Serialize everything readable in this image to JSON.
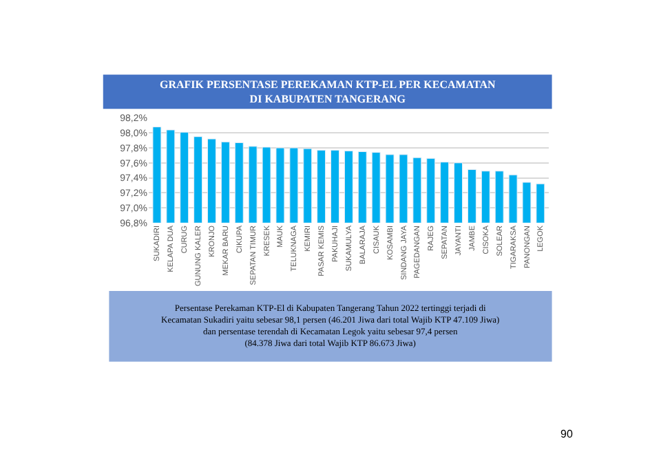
{
  "chart_data": {
    "type": "bar",
    "title": "GRAFIK PERSENTASE PEREKAMAN KTP-EL PER KECAMATAN\nDI KABUPATEN TANGERANG",
    "categories": [
      "SUKADIRI",
      "KELAPA DUA",
      "CURUG",
      "GUNUNG KALER",
      "KRONJO",
      "MEKAR BARU",
      "CIKUPA",
      "SEPATAN TIMUR",
      "KRESEK",
      "MAUK",
      "TELUKNAGA",
      "KEMIRI",
      "PASAR KEMIS",
      "PAKUHAJI",
      "SUKAMULYA",
      "BALARAJA",
      "CISAUK",
      "KOSAMBI",
      "SINDANG JAYA",
      "PAGEDANGAN",
      "RAJEG",
      "SEPATAN",
      "JAYANTI",
      "JAMBE",
      "CISOKA",
      "SOLEAR",
      "TIGARAKSA",
      "PANONGAN",
      "LEGOK"
    ],
    "values": [
      98.08,
      98.04,
      98.01,
      97.95,
      97.92,
      97.88,
      97.87,
      97.82,
      97.81,
      97.8,
      97.8,
      97.79,
      97.77,
      97.77,
      97.76,
      97.75,
      97.74,
      97.71,
      97.71,
      97.67,
      97.66,
      97.61,
      97.6,
      97.51,
      97.49,
      97.49,
      97.44,
      97.34,
      97.32
    ],
    "color": "#00b0f0",
    "ylim": [
      96.8,
      98.2
    ],
    "yticks": [
      {
        "value": 96.8,
        "label": "96,8%"
      },
      {
        "value": 97.0,
        "label": "97,0%"
      },
      {
        "value": 97.2,
        "label": "97,2%"
      },
      {
        "value": 97.4,
        "label": "97,4%"
      },
      {
        "value": 97.6,
        "label": "97,6%"
      },
      {
        "value": 97.8,
        "label": "97,8%"
      },
      {
        "value": 98.0,
        "label": "98,0%"
      },
      {
        "value": 98.2,
        "label": "98,2%"
      }
    ],
    "grid": "y",
    "annotations": [
      "Persentase Perekaman KTP-El di Kabupaten Tangerang Tahun 2022 tertinggi terjadi di\nKecamatan Sukadiri yaitu sebesar 98,1 persen (46.201 Jiwa dari total Wajib KTP 47.109 Jiwa)\ndan persentase terendah di Kecamatan Legok yaitu sebesar 97,4 persen\n(84.378 Jiwa dari total Wajib KTP 86.673 Jiwa)",
      "90"
    ]
  }
}
